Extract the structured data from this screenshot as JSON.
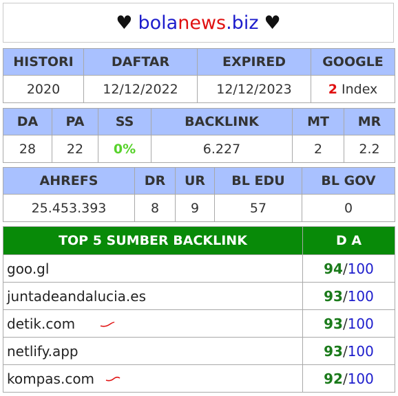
{
  "header": {
    "heart": "♥",
    "site_part1": "bola",
    "site_part2": "news",
    "site_part3": ".biz"
  },
  "table1": {
    "headers": [
      "HISTORI",
      "DAFTAR",
      "EXPIRED",
      "GOOGLE"
    ],
    "histori": "2020",
    "daftar": "12/12/2022",
    "expired": "12/12/2023",
    "google_count": "2",
    "google_label": "Index"
  },
  "table2": {
    "headers": [
      "DA",
      "PA",
      "SS",
      "BACKLINK",
      "MT",
      "MR"
    ],
    "da": "28",
    "pa": "22",
    "ss": "0%",
    "backlink": "6.227",
    "mt": "2",
    "mr": "2.2"
  },
  "table3": {
    "headers": [
      "AHREFS",
      "DR",
      "UR",
      "BL EDU",
      "BL GOV"
    ],
    "ahrefs": "25.453.393",
    "dr": "8",
    "ur": "9",
    "bl_edu": "57",
    "bl_gov": "0"
  },
  "table4": {
    "header_source": "TOP 5 SUMBER BACKLINK",
    "header_da": "D A",
    "rows": [
      {
        "domain": "goo.gl",
        "da": "94",
        "slash": "/",
        "max": "100"
      },
      {
        "domain": "juntadeandalucia.es",
        "da": "93",
        "slash": "/",
        "max": "100"
      },
      {
        "domain": "detik.com",
        "da": "93",
        "slash": "/",
        "max": "100"
      },
      {
        "domain": "netlify.app",
        "da": "93",
        "slash": "/",
        "max": "100"
      },
      {
        "domain": "kompas.com",
        "da": "92",
        "slash": "/",
        "max": "100"
      }
    ]
  },
  "colors": {
    "header_blue": "#a9c1ff",
    "header_green": "#088a08",
    "accent_red": "#e01010",
    "accent_blue": "#1c1ccc",
    "ss_green": "#57d22b"
  }
}
